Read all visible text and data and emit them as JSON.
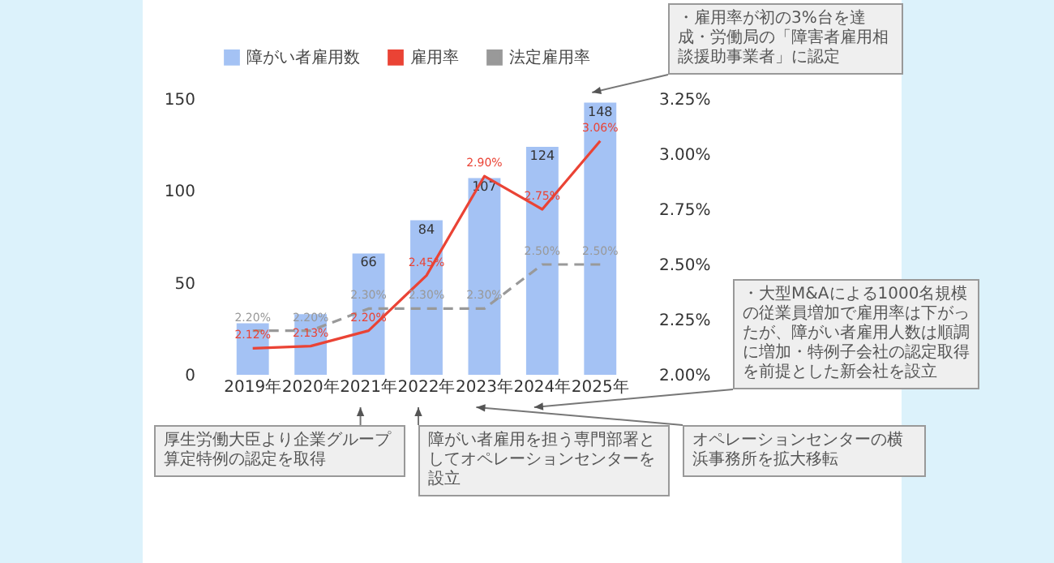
{
  "chart_data": {
    "type": "bar",
    "categories": [
      "2019年",
      "2020年",
      "2021年",
      "2022年",
      "2023年",
      "2024年",
      "2025年"
    ],
    "ylim": [
      0,
      150
    ],
    "yticks": [
      0,
      50,
      100,
      150
    ],
    "y2lim": [
      2.0,
      3.25
    ],
    "y2ticks": [
      {
        "value": 2.0,
        "label": "2.00%"
      },
      {
        "value": 2.25,
        "label": "2.25%"
      },
      {
        "value": 2.5,
        "label": "2.50%"
      },
      {
        "value": 2.75,
        "label": "2.75%"
      },
      {
        "value": 3.0,
        "label": "3.00%"
      },
      {
        "value": 3.25,
        "label": "3.25%"
      }
    ],
    "legend": "top",
    "grid": false,
    "series": [
      {
        "name": "障がい者雇用数",
        "color": "#a4c2f4",
        "values": [
          28,
          33,
          66,
          84,
          107,
          124,
          148
        ],
        "value_labels": [
          null,
          null,
          "66",
          "84",
          "107",
          "124",
          "148"
        ]
      },
      {
        "name": "雇用率",
        "type": "line",
        "axis": "y2",
        "color": "#ea4335",
        "values": [
          2.12,
          2.13,
          2.2,
          2.45,
          2.9,
          2.75,
          3.06
        ],
        "value_labels": [
          "2.12%",
          "2.13%",
          "2.20%",
          "2.45%",
          "2.90%",
          "2.75%",
          "3.06%"
        ]
      },
      {
        "name": "法定雇用率",
        "type": "line",
        "axis": "y2",
        "color": "#999999",
        "line_style": "dashed",
        "values": [
          2.2,
          2.2,
          2.3,
          2.3,
          2.3,
          2.5,
          2.5
        ],
        "value_labels": [
          "2.20%",
          "2.20%",
          "2.30%",
          "2.30%",
          "2.30%",
          "2.50%",
          "2.50%"
        ]
      }
    ],
    "annotations": [
      "・雇用率が初の3%台を達成・労働局の「障害者雇用相談援助事業者」に認定",
      "・大型M&Aによる1000名規模の従業員増加で雇用率は下がったが、障がい者雇用人数は順調に増加・特例子会社の認定取得を前提とした新会社を設立",
      "厚生労働大臣より企業グループ算定特例の認定を取得",
      "障がい者雇用を担う専門部署としてオペレーションセンターを設立",
      "オペレーションセンターの横浜事務所を拡大移転"
    ]
  }
}
